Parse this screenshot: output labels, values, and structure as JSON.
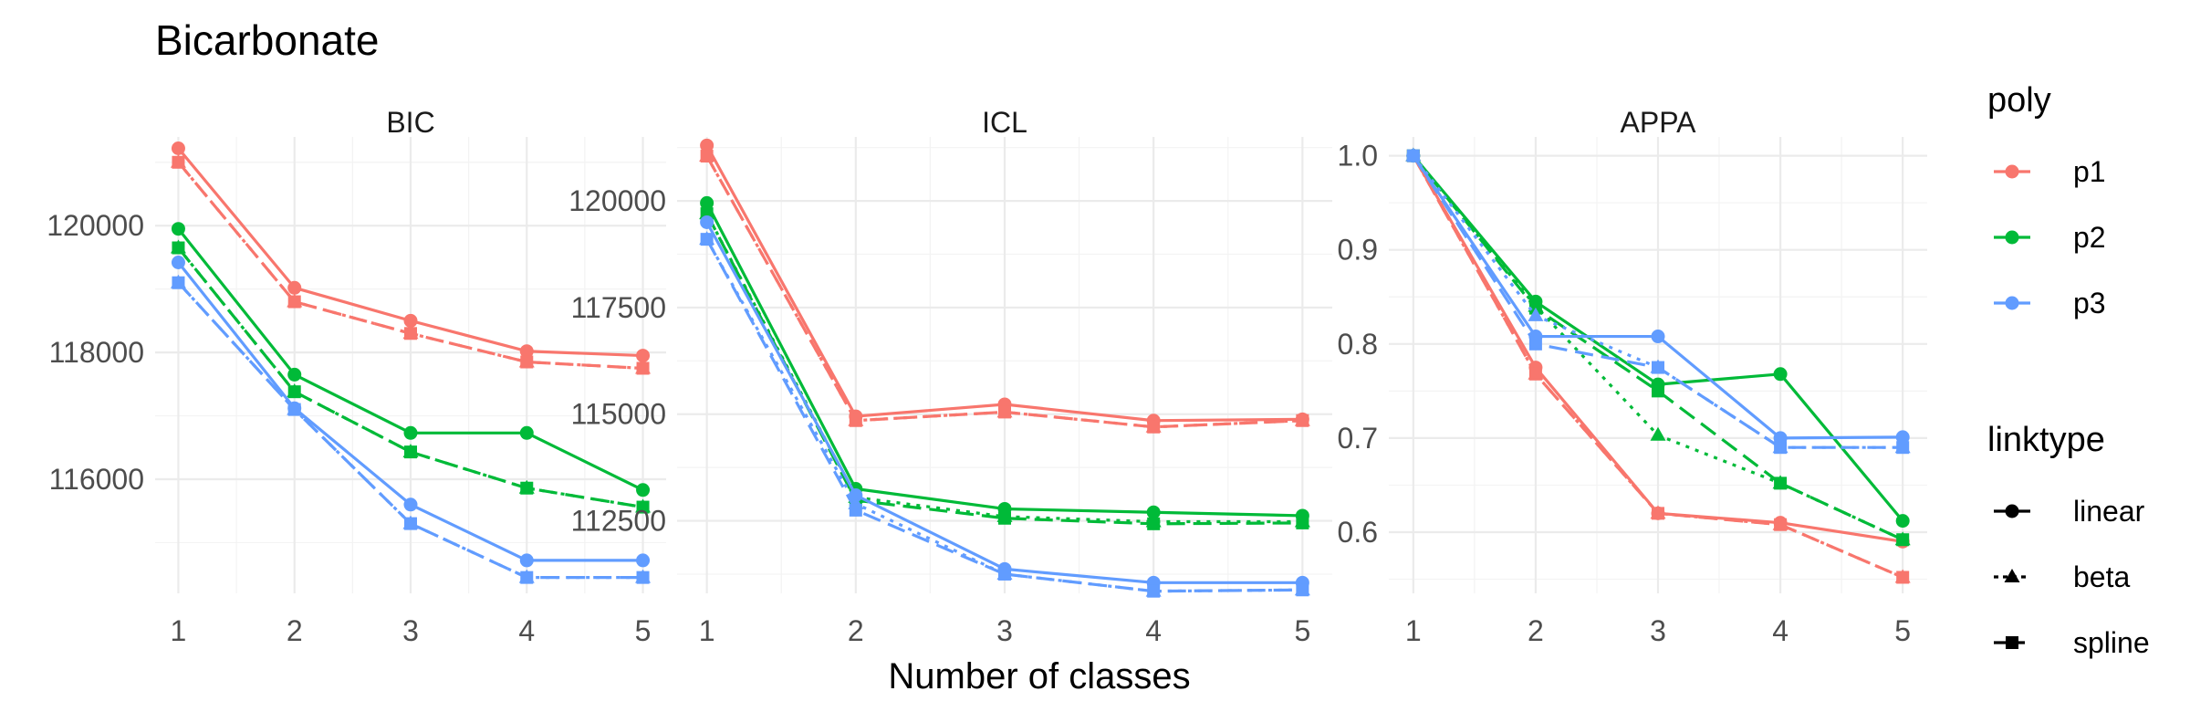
{
  "title": "Bicarbonate",
  "xlabel": "Number of classes",
  "legend": {
    "color_title": "poly",
    "color_items": [
      {
        "label": "p1",
        "color": "#F8766D"
      },
      {
        "label": "p2",
        "color": "#00BA38"
      },
      {
        "label": "p3",
        "color": "#619CFF"
      }
    ],
    "shape_title": "linktype",
    "shape_items": [
      {
        "label": "linear",
        "shape": "circle",
        "dash": "solid"
      },
      {
        "label": "beta",
        "shape": "triangle",
        "dash": "dotted"
      },
      {
        "label": "spline",
        "shape": "square",
        "dash": "dashed"
      }
    ]
  },
  "chart_data": [
    {
      "type": "line",
      "title": "BIC",
      "x": [
        1,
        2,
        3,
        4,
        5
      ],
      "xticks": [
        "1",
        "2",
        "3",
        "4",
        "5"
      ],
      "ylim": [
        114200,
        121400
      ],
      "yticks": [
        116000,
        118000,
        120000
      ],
      "ytick_labels": [
        "116000",
        "118000",
        "120000"
      ],
      "grid": true,
      "series": [
        {
          "name": "p1",
          "linktype": "linear",
          "values": [
            121220,
            119020,
            118500,
            118020,
            117950
          ]
        },
        {
          "name": "p1",
          "linktype": "beta",
          "values": [
            121000,
            118800,
            118300,
            117850,
            117750
          ]
        },
        {
          "name": "p1",
          "linktype": "spline",
          "values": [
            121000,
            118800,
            118300,
            117850,
            117750
          ]
        },
        {
          "name": "p2",
          "linktype": "linear",
          "values": [
            119950,
            117650,
            116730,
            116730,
            115830
          ]
        },
        {
          "name": "p2",
          "linktype": "beta",
          "values": [
            119650,
            117380,
            116430,
            115860,
            115560
          ]
        },
        {
          "name": "p2",
          "linktype": "spline",
          "values": [
            119650,
            117380,
            116430,
            115860,
            115560
          ]
        },
        {
          "name": "p3",
          "linktype": "linear",
          "values": [
            119420,
            117120,
            115600,
            114720,
            114720
          ]
        },
        {
          "name": "p3",
          "linktype": "beta",
          "values": [
            119100,
            117100,
            115300,
            114450,
            114450
          ]
        },
        {
          "name": "p3",
          "linktype": "spline",
          "values": [
            119100,
            117100,
            115300,
            114450,
            114450
          ]
        }
      ]
    },
    {
      "type": "line",
      "title": "ICL",
      "x": [
        1,
        2,
        3,
        4,
        5
      ],
      "xticks": [
        "1",
        "2",
        "3",
        "4",
        "5"
      ],
      "ylim": [
        110800,
        121500
      ],
      "yticks": [
        112500,
        115000,
        117500,
        120000
      ],
      "ytick_labels": [
        "112500",
        "115000",
        "117500",
        "120000"
      ],
      "grid": true,
      "series": [
        {
          "name": "p1",
          "linktype": "linear",
          "values": [
            121300,
            114950,
            115230,
            114850,
            114880
          ]
        },
        {
          "name": "p1",
          "linktype": "beta",
          "values": [
            121050,
            114850,
            115050,
            114700,
            114850
          ]
        },
        {
          "name": "p1",
          "linktype": "spline",
          "values": [
            121050,
            114850,
            115050,
            114700,
            114850
          ]
        },
        {
          "name": "p2",
          "linktype": "linear",
          "values": [
            119950,
            113250,
            112780,
            112700,
            112620
          ]
        },
        {
          "name": "p2",
          "linktype": "beta",
          "values": [
            119700,
            113050,
            112600,
            112480,
            112480
          ]
        },
        {
          "name": "p2",
          "linktype": "spline",
          "values": [
            119700,
            112980,
            112560,
            112430,
            112450
          ]
        },
        {
          "name": "p3",
          "linktype": "linear",
          "values": [
            119500,
            113100,
            111370,
            111050,
            111050
          ]
        },
        {
          "name": "p3",
          "linktype": "beta",
          "values": [
            119100,
            112900,
            111250,
            110850,
            110880
          ]
        },
        {
          "name": "p3",
          "linktype": "spline",
          "values": [
            119100,
            112750,
            111250,
            110850,
            110880
          ]
        }
      ]
    },
    {
      "type": "line",
      "title": "APPA",
      "x": [
        1,
        2,
        3,
        4,
        5
      ],
      "xticks": [
        "1",
        "2",
        "3",
        "4",
        "5"
      ],
      "ylim": [
        0.535,
        1.02
      ],
      "yticks": [
        0.6,
        0.7,
        0.8,
        0.9,
        1.0
      ],
      "ytick_labels": [
        "0.6",
        "0.7",
        "0.8",
        "0.9",
        "1.0"
      ],
      "grid": true,
      "series": [
        {
          "name": "p1",
          "linktype": "linear",
          "values": [
            1.0,
            0.775,
            0.62,
            0.61,
            0.59
          ]
        },
        {
          "name": "p1",
          "linktype": "beta",
          "values": [
            1.0,
            0.768,
            0.62,
            0.608,
            0.552
          ]
        },
        {
          "name": "p1",
          "linktype": "spline",
          "values": [
            1.0,
            0.768,
            0.62,
            0.608,
            0.552
          ]
        },
        {
          "name": "p2",
          "linktype": "linear",
          "values": [
            1.0,
            0.845,
            0.757,
            0.768,
            0.612
          ]
        },
        {
          "name": "p2",
          "linktype": "beta",
          "values": [
            1.0,
            0.84,
            0.703,
            0.652,
            0.592
          ]
        },
        {
          "name": "p2",
          "linktype": "spline",
          "values": [
            1.0,
            0.838,
            0.75,
            0.652,
            0.592
          ]
        },
        {
          "name": "p3",
          "linktype": "linear",
          "values": [
            1.0,
            0.808,
            0.808,
            0.7,
            0.701
          ]
        },
        {
          "name": "p3",
          "linktype": "beta",
          "values": [
            1.0,
            0.83,
            0.775,
            0.69,
            0.69
          ]
        },
        {
          "name": "p3",
          "linktype": "spline",
          "values": [
            1.0,
            0.8,
            0.775,
            0.69,
            0.69
          ]
        }
      ]
    }
  ]
}
